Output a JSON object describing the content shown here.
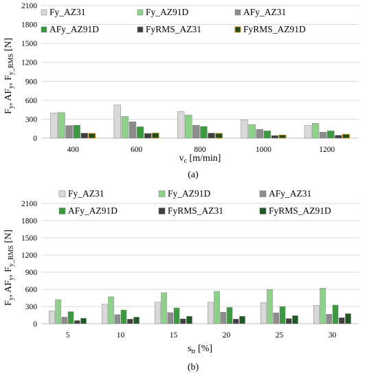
{
  "chart_data": [
    {
      "type": "bar",
      "panel_label": "(a)",
      "xlabel_main": "v",
      "xlabel_sub": "c",
      "xlabel_unit": " [m/min]",
      "ylabel": "F",
      "ylabel_parts": [
        {
          "t": "F",
          "sub": false
        },
        {
          "t": "y",
          "sub": true
        },
        {
          "t": ", AF",
          "sub": false
        },
        {
          "t": "y",
          "sub": true
        },
        {
          "t": ", F",
          "sub": false
        },
        {
          "t": "y_RMS",
          "sub": true
        },
        {
          "t": " [N]",
          "sub": false
        }
      ],
      "ylim": [
        0,
        2100
      ],
      "yticks": [
        "0",
        "300",
        "600",
        "900",
        "1200",
        "1500",
        "1800",
        "2100"
      ],
      "yticks_values": [
        0,
        300,
        600,
        900,
        1200,
        1500,
        1800,
        2100
      ],
      "grid": true,
      "legend_position": "top",
      "categories": [
        "400",
        "600",
        "800",
        "1000",
        "1200"
      ],
      "series": [
        {
          "name": "Fy_AZ31",
          "color": "#d9d9d9",
          "values": [
            400,
            525,
            420,
            290,
            200
          ]
        },
        {
          "name": "Fy_AZ91D",
          "color": "#8fd18b",
          "values": [
            405,
            345,
            365,
            215,
            235
          ]
        },
        {
          "name": "AFy_AZ31",
          "color": "#8c8c8c",
          "values": [
            200,
            260,
            205,
            140,
            95
          ]
        },
        {
          "name": "AFy_AZ91D",
          "color": "#3b9a3f",
          "values": [
            205,
            180,
            185,
            115,
            115
          ]
        },
        {
          "name": "FyRMS_AZ31",
          "color": "#3f3f3f",
          "values": [
            80,
            75,
            80,
            40,
            45
          ]
        },
        {
          "name": "FyRMS_AZ91D",
          "color": "#234d1a",
          "edge": "#c98a1b",
          "values": [
            75,
            80,
            75,
            50,
            60
          ]
        }
      ]
    },
    {
      "type": "bar",
      "panel_label": "(b)",
      "xlabel_main": "s",
      "xlabel_sub": "tr",
      "xlabel_unit": " [%]",
      "ylabel": "F",
      "ylabel_parts": [
        {
          "t": "F",
          "sub": false
        },
        {
          "t": "y",
          "sub": true
        },
        {
          "t": ", AF",
          "sub": false
        },
        {
          "t": "y",
          "sub": true
        },
        {
          "t": ", F",
          "sub": false
        },
        {
          "t": "y_RMS",
          "sub": true
        },
        {
          "t": " [N]",
          "sub": false
        }
      ],
      "ylim": [
        0,
        2100
      ],
      "yticks": [
        "0",
        "300",
        "600",
        "900",
        "1200",
        "1500",
        "1800",
        "2100"
      ],
      "yticks_values": [
        0,
        300,
        600,
        900,
        1200,
        1500,
        1800,
        2100
      ],
      "grid": true,
      "legend_position": "top",
      "categories": [
        "5",
        "10",
        "15",
        "20",
        "25",
        "30"
      ],
      "series": [
        {
          "name": "Fy_AZ31",
          "color": "#d9d9d9",
          "values": [
            225,
            340,
            375,
            375,
            370,
            320
          ]
        },
        {
          "name": "Fy_AZ91D",
          "color": "#8fd18b",
          "values": [
            420,
            470,
            540,
            565,
            600,
            620
          ]
        },
        {
          "name": "AFy_AZ31",
          "color": "#8c8c8c",
          "values": [
            115,
            160,
            195,
            200,
            190,
            165
          ]
        },
        {
          "name": "AFy_AZ91D",
          "color": "#3b9a3f",
          "values": [
            210,
            240,
            275,
            285,
            300,
            325
          ]
        },
        {
          "name": "FyRMS_AZ31",
          "color": "#3f3f3f",
          "values": [
            55,
            80,
            85,
            80,
            90,
            105
          ]
        },
        {
          "name": "FyRMS_AZ91D",
          "color": "#1e5a22",
          "values": [
            95,
            115,
            130,
            130,
            140,
            175
          ]
        }
      ]
    }
  ]
}
